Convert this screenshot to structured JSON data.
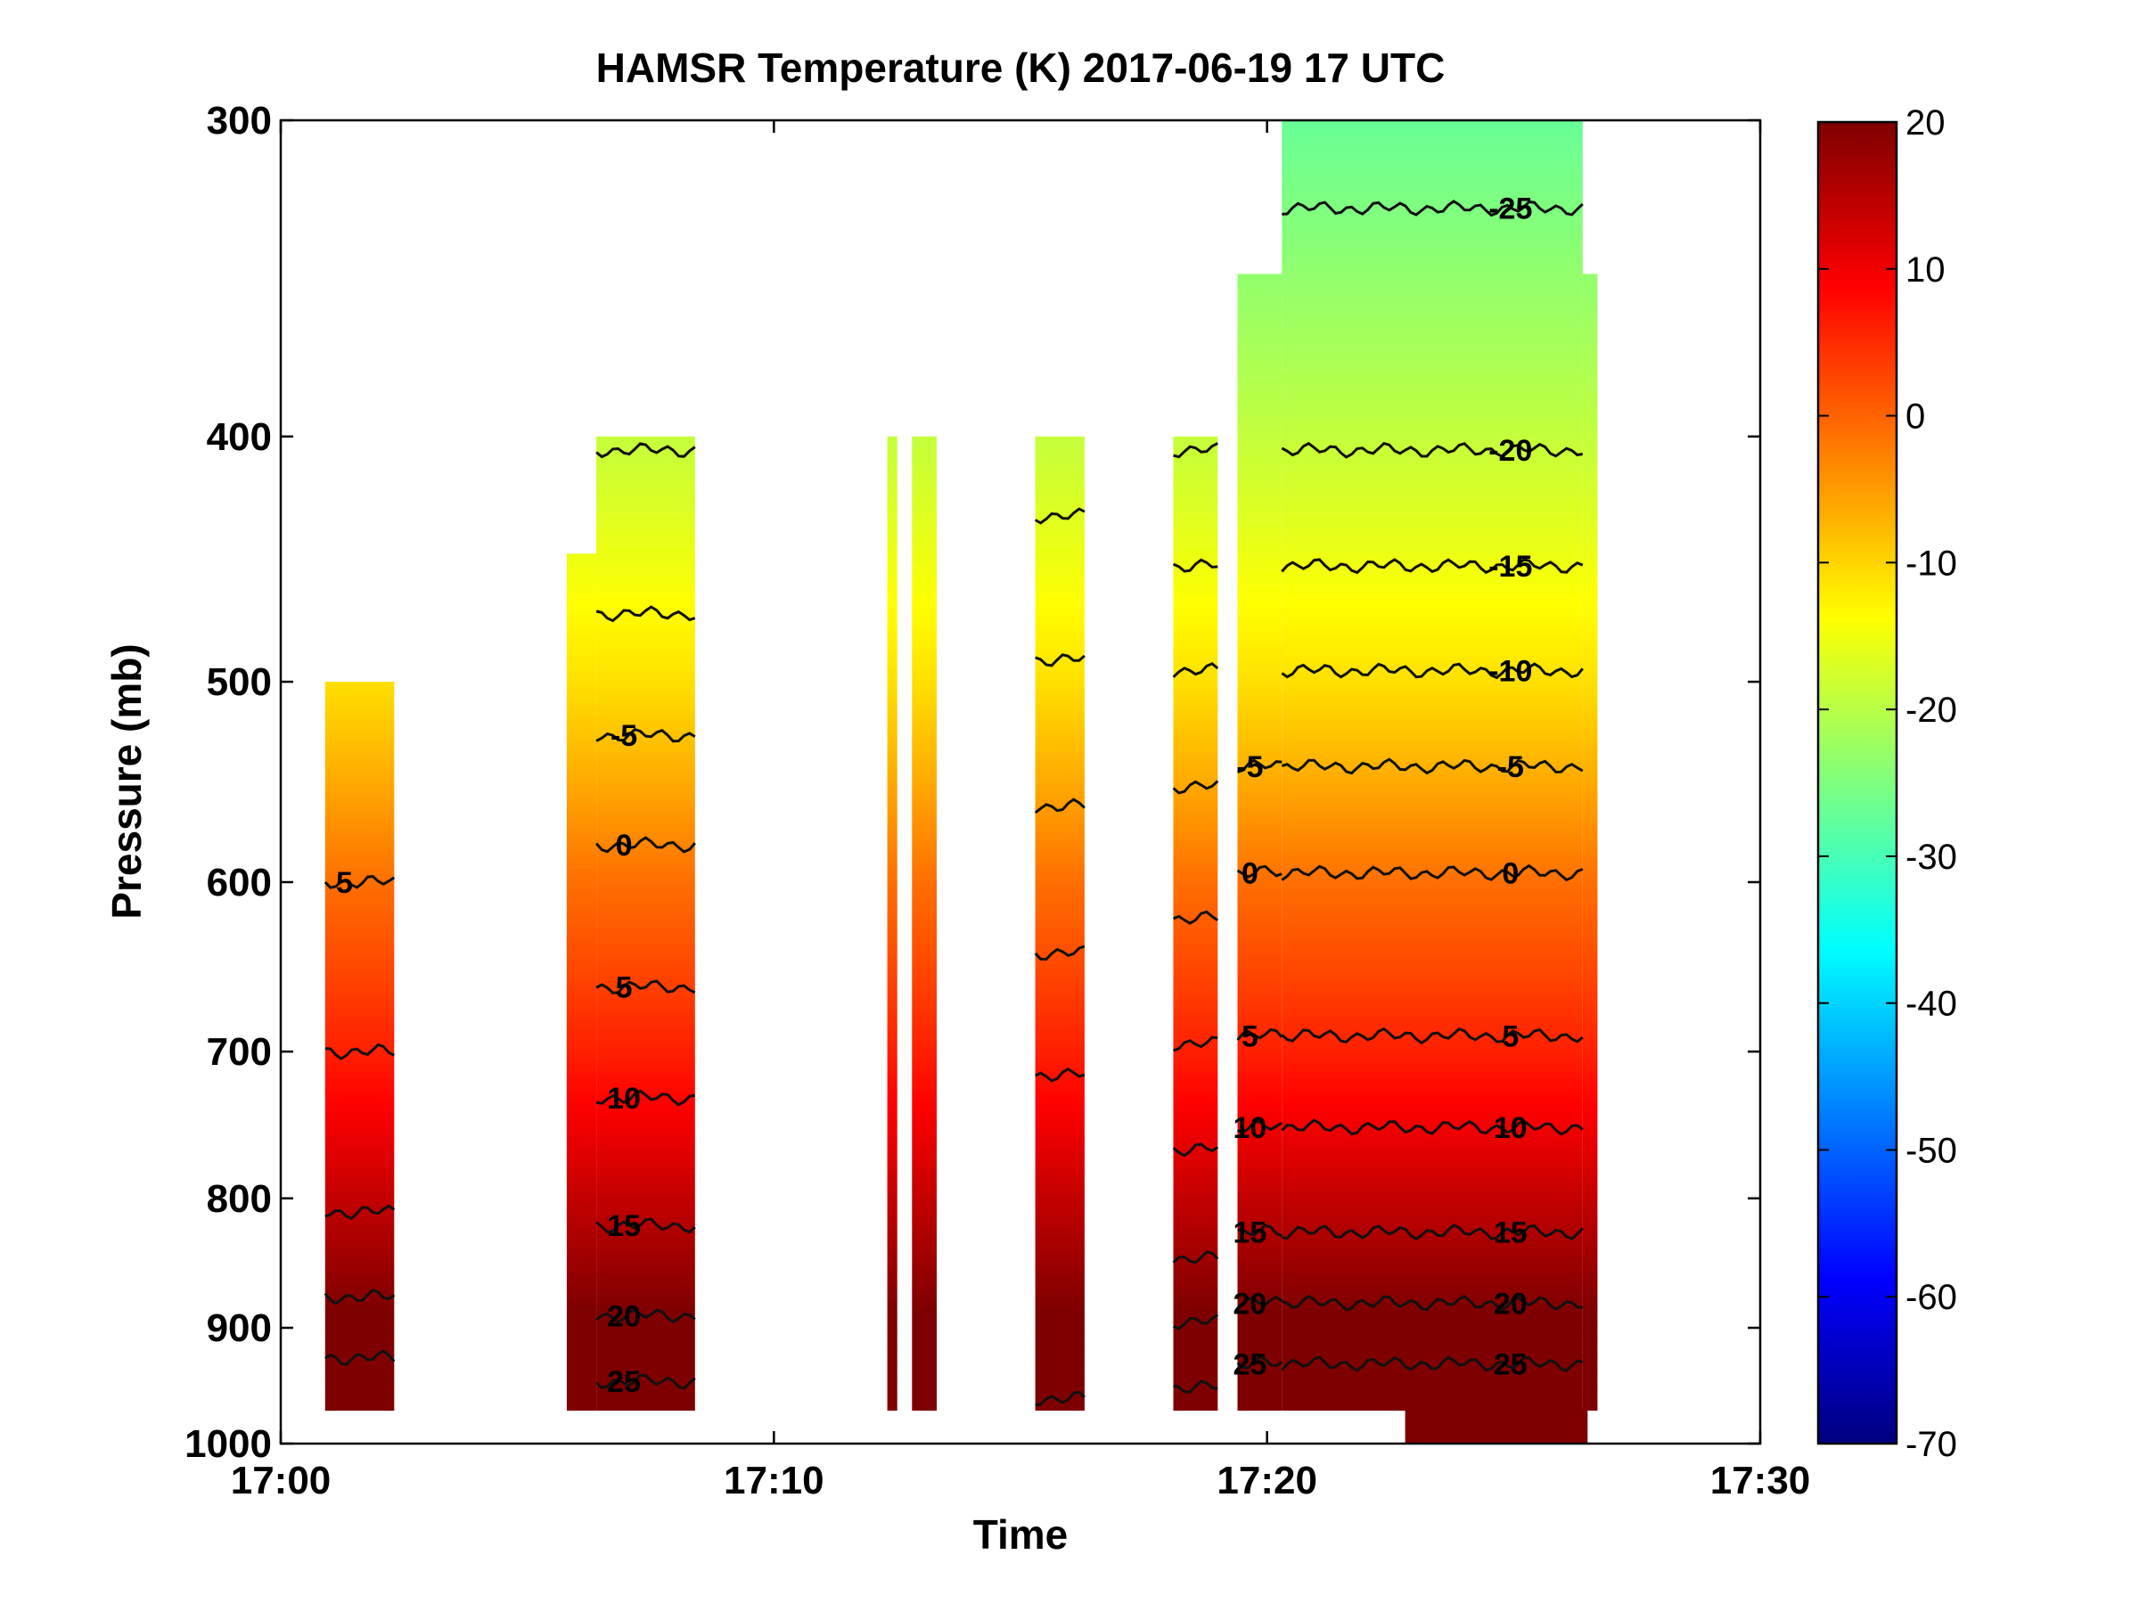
{
  "chart_data": {
    "type": "heatmap",
    "title": "HAMSR  Temperature (K) 2017-06-19 17 UTC",
    "xlabel": "Time",
    "ylabel": "Pressure (mb)",
    "x_ticks": [
      "17:00",
      "17:10",
      "17:20",
      "17:30"
    ],
    "xlim_minutes": [
      0,
      30
    ],
    "y_ticks": [
      300,
      400,
      500,
      600,
      700,
      800,
      900,
      1000
    ],
    "ylim": [
      300,
      1000
    ],
    "y_scale": "log",
    "y_reversed": true,
    "colorbar": {
      "ticks": [
        20,
        10,
        0,
        -10,
        -20,
        -30,
        -40,
        -50,
        -60,
        -70
      ],
      "range": [
        -70,
        20
      ],
      "colormap": "jet"
    },
    "colors": {
      "jet_stops": [
        "#00007f",
        "#0000ff",
        "#007fff",
        "#00ffff",
        "#7fff7f",
        "#ffff00",
        "#ff7f00",
        "#ff0000",
        "#7f0000"
      ]
    },
    "temperature_profile": {
      "pressure": [
        300,
        400,
        450,
        500,
        550,
        600,
        700,
        800,
        900,
        1000
      ],
      "temperature": [
        -27,
        -19,
        -15,
        -11,
        -6,
        -1,
        6,
        14,
        21,
        26
      ]
    },
    "segments": [
      {
        "start": 0.9,
        "end": 2.3,
        "p_top": 500,
        "p_bottom": 970
      },
      {
        "start": 5.8,
        "end": 6.4,
        "p_top": 445,
        "p_bottom": 970
      },
      {
        "start": 6.4,
        "end": 8.4,
        "p_top": 400,
        "p_bottom": 970
      },
      {
        "start": 12.3,
        "end": 12.5,
        "p_top": 400,
        "p_bottom": 970
      },
      {
        "start": 12.8,
        "end": 13.3,
        "p_top": 400,
        "p_bottom": 970
      },
      {
        "start": 15.3,
        "end": 16.3,
        "p_top": 400,
        "p_bottom": 970
      },
      {
        "start": 18.1,
        "end": 19.0,
        "p_top": 400,
        "p_bottom": 970
      },
      {
        "start": 19.4,
        "end": 20.3,
        "p_top": 345,
        "p_bottom": 970
      },
      {
        "start": 20.3,
        "end": 26.4,
        "p_top": 300,
        "p_bottom": 970
      },
      {
        "start": 26.4,
        "end": 26.7,
        "p_top": 345,
        "p_bottom": 970
      },
      {
        "start": 22.8,
        "end": 26.5,
        "p_top": 970,
        "p_bottom": 1000
      }
    ],
    "contours": [
      {
        "segment": 0,
        "levels": [
          {
            "p": 600,
            "label": "5"
          },
          {
            "p": 700
          },
          {
            "p": 810
          },
          {
            "p": 875
          },
          {
            "p": 925
          }
        ]
      },
      {
        "segment": 2,
        "levels": [
          {
            "p": 405
          },
          {
            "p": 470
          },
          {
            "p": 525,
            "label": "-5"
          },
          {
            "p": 580,
            "label": "0"
          },
          {
            "p": 660,
            "label": "5"
          },
          {
            "p": 730,
            "label": "10"
          },
          {
            "p": 820,
            "label": "15"
          },
          {
            "p": 890,
            "label": "20"
          },
          {
            "p": 945,
            "label": "25"
          }
        ]
      },
      {
        "segment": 5,
        "levels": [
          {
            "p": 430
          },
          {
            "p": 490
          },
          {
            "p": 560
          },
          {
            "p": 640
          },
          {
            "p": 715
          },
          {
            "p": 960
          }
        ]
      },
      {
        "segment": 6,
        "levels": [
          {
            "p": 405
          },
          {
            "p": 450
          },
          {
            "p": 495
          },
          {
            "p": 550
          },
          {
            "p": 620
          },
          {
            "p": 695
          },
          {
            "p": 765
          },
          {
            "p": 845
          },
          {
            "p": 895
          },
          {
            "p": 950
          }
        ]
      },
      {
        "segment": 8,
        "levels": [
          {
            "p": 325,
            "label": "-25"
          },
          {
            "p": 405,
            "label": "-20"
          },
          {
            "p": 450,
            "label": "-15"
          },
          {
            "p": 495,
            "label": "-10"
          },
          {
            "p": 540,
            "label": "-5"
          },
          {
            "p": 595,
            "label": "0"
          },
          {
            "p": 690,
            "label": "5"
          },
          {
            "p": 750,
            "label": "10"
          },
          {
            "p": 825,
            "label": "15"
          },
          {
            "p": 880,
            "label": "20"
          },
          {
            "p": 930,
            "label": "25"
          }
        ]
      },
      {
        "segment": 7,
        "levels": [
          {
            "p": 540,
            "label": "-5"
          },
          {
            "p": 595,
            "label": "0"
          },
          {
            "p": 690,
            "label": "5"
          },
          {
            "p": 750,
            "label": "10"
          },
          {
            "p": 825,
            "label": "15"
          },
          {
            "p": 880,
            "label": "20"
          },
          {
            "p": 930,
            "label": "25"
          }
        ]
      }
    ]
  }
}
